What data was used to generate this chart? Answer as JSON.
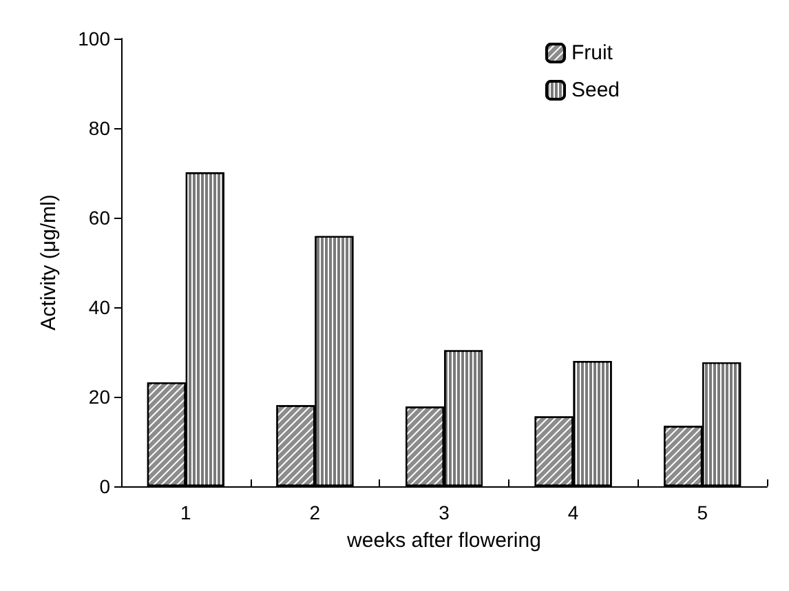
{
  "chart_data": {
    "type": "bar",
    "xlabel": "weeks after flowering",
    "ylabel": "Activity (μg/ml)",
    "categories": [
      "1",
      "2",
      "3",
      "4",
      "5"
    ],
    "series": [
      {
        "name": "Fruit",
        "color": "#8c8c8c",
        "values": [
          23.2,
          18.1,
          17.8,
          15.6,
          13.5
        ]
      },
      {
        "name": "Seed",
        "color": "#7a7a7a",
        "values": [
          70.1,
          55.9,
          30.4,
          28.0,
          27.7
        ]
      }
    ],
    "ylim": [
      0,
      100
    ],
    "yticks": [
      0,
      20,
      40,
      60,
      80,
      100
    ],
    "grid": false,
    "legend": "top right"
  }
}
